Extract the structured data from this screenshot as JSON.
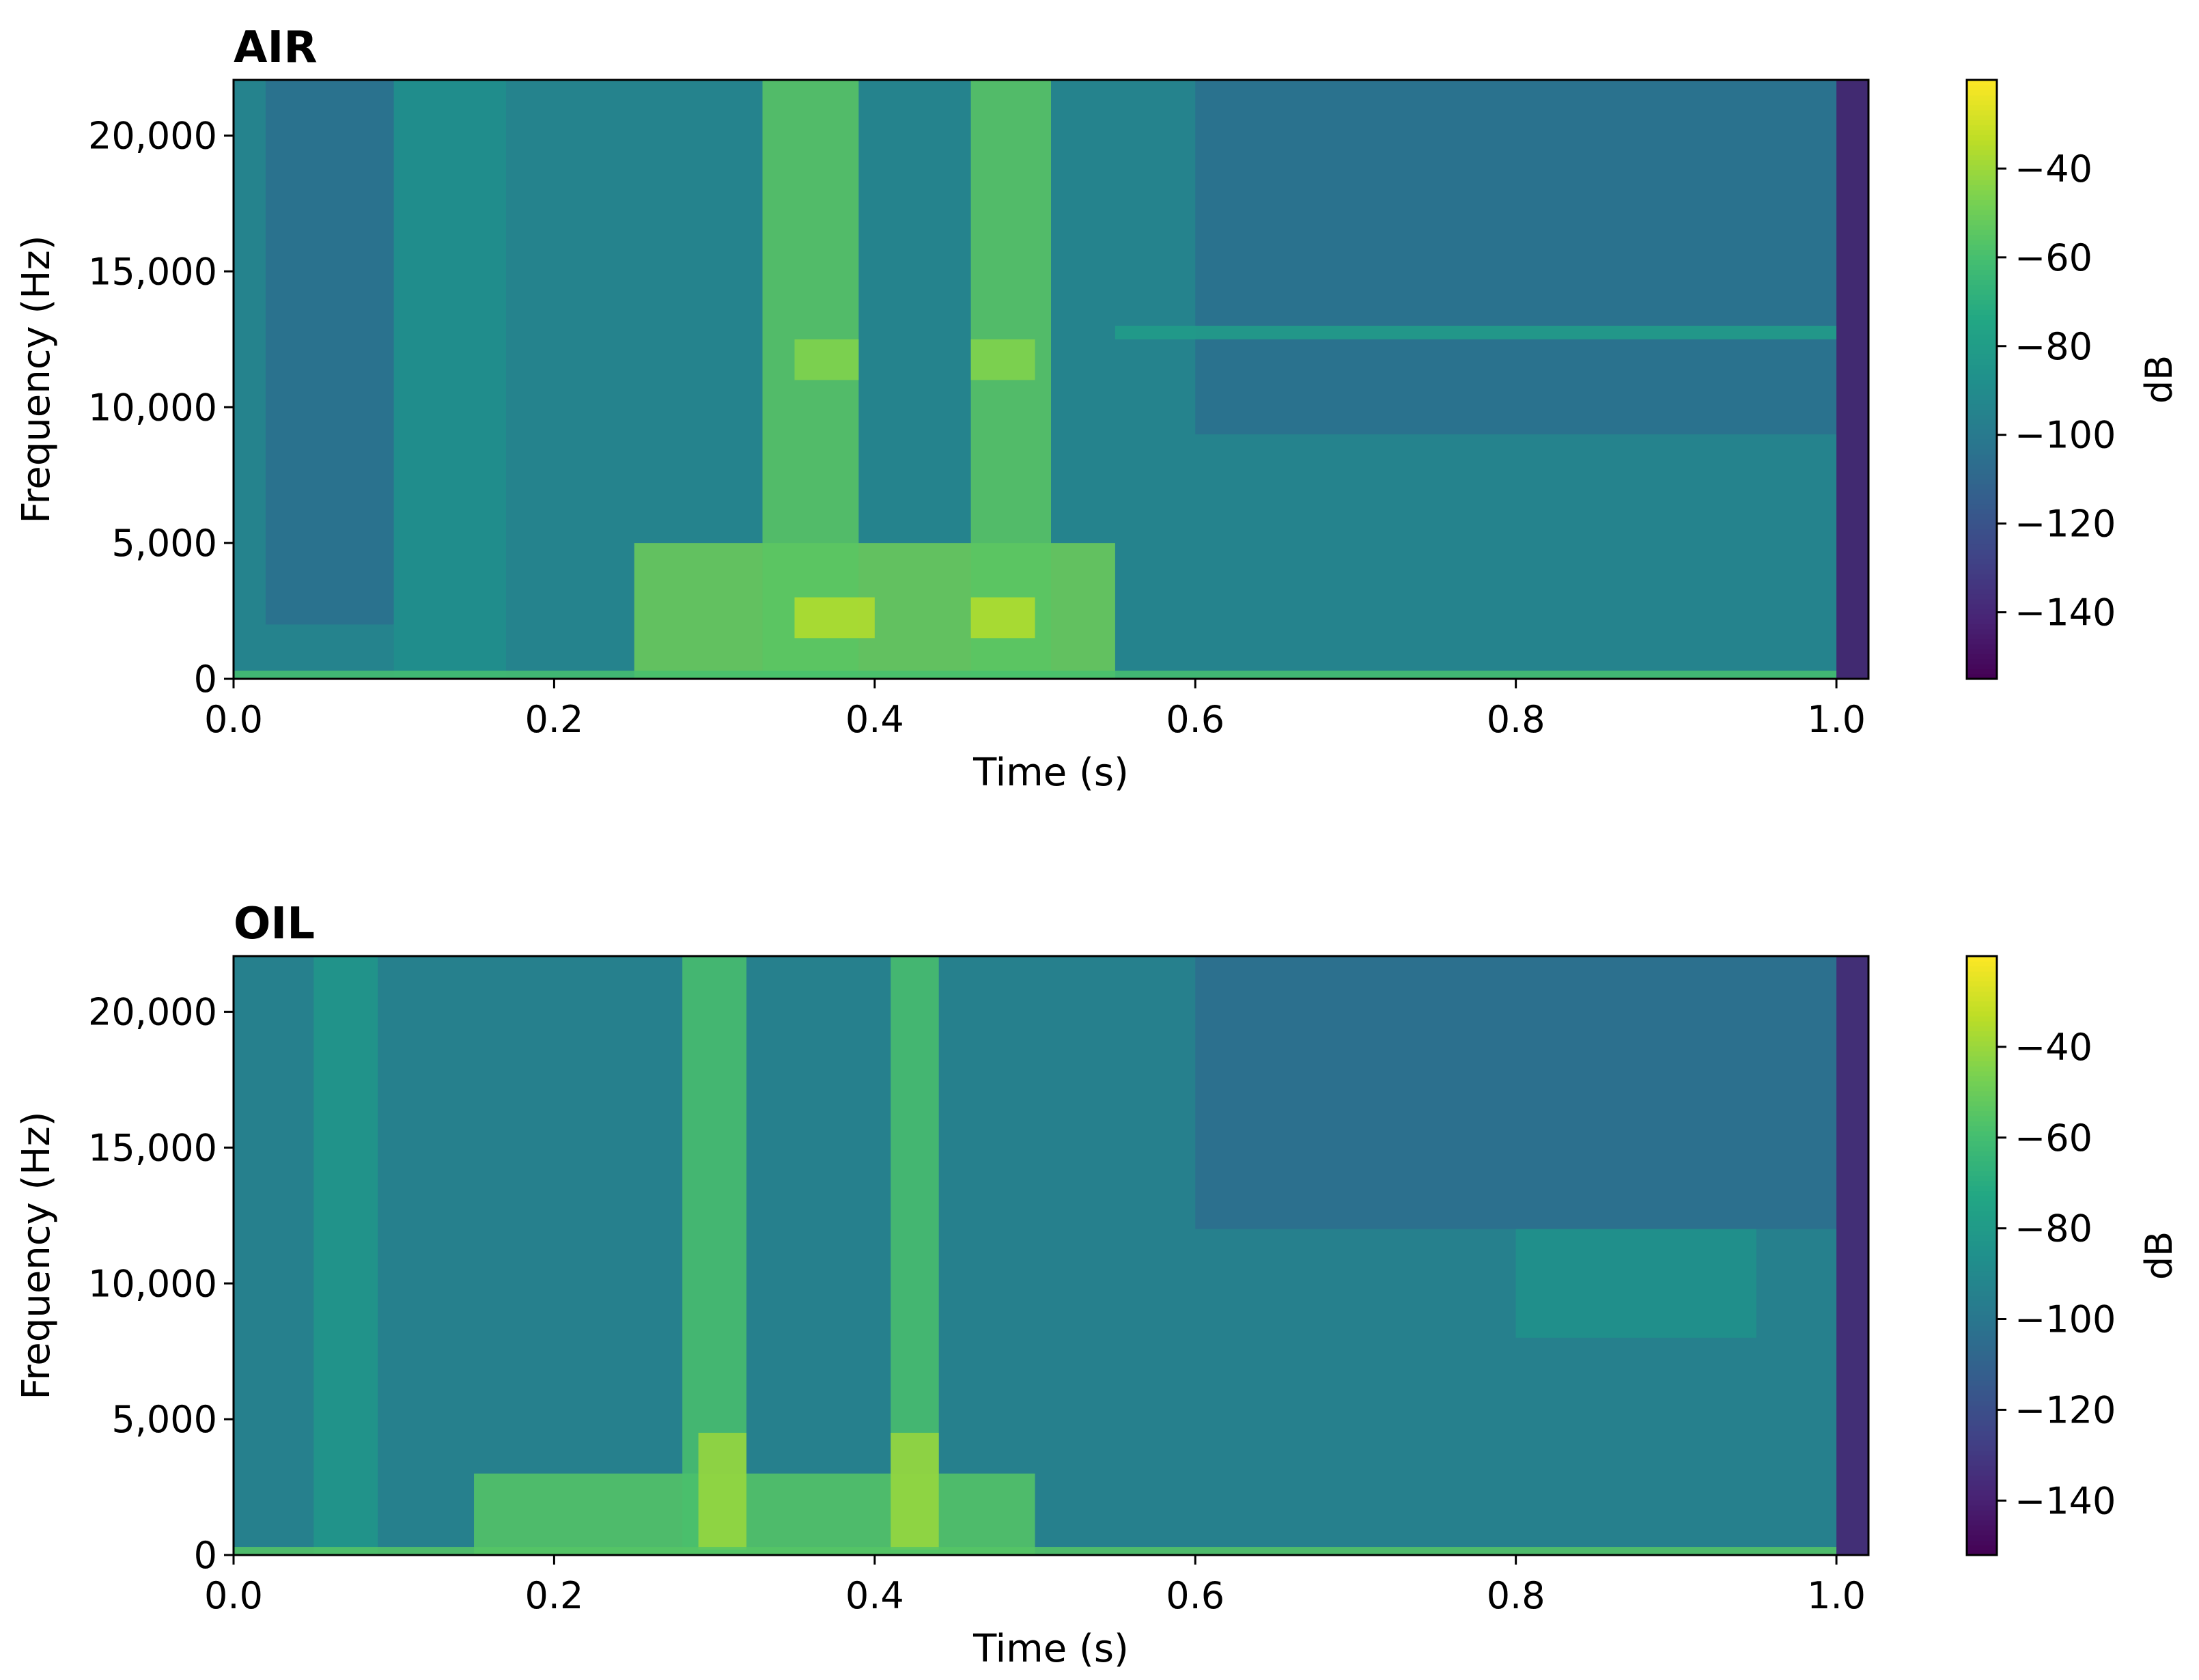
{
  "chart_data": [
    {
      "type": "heatmap",
      "title": "AIR",
      "xlabel": "Time (s)",
      "ylabel": "Frequency (Hz)",
      "xlim": [
        0.0,
        1.02
      ],
      "ylim": [
        0,
        22050
      ],
      "xticks": [
        0.0,
        0.2,
        0.4,
        0.6,
        0.8,
        1.0
      ],
      "xtick_labels": [
        "0.0",
        "0.2",
        "0.4",
        "0.6",
        "0.8",
        "1.0"
      ],
      "yticks": [
        0,
        5000,
        10000,
        15000,
        20000
      ],
      "ytick_labels": [
        "0",
        "5,000",
        "10,000",
        "15,000",
        "20,000"
      ],
      "colormap": "viridis",
      "colorbar": {
        "label": "dB",
        "range": [
          -155,
          -20
        ],
        "ticks": [
          -140,
          -120,
          -100,
          -80,
          -60,
          -40
        ],
        "tick_labels": [
          "−140",
          "−120",
          "−100",
          "−80",
          "−60",
          "−40"
        ]
      },
      "background_db": -95,
      "features": [
        {
          "t0": 0.02,
          "t1": 0.1,
          "f0": 2000,
          "f1": 22050,
          "db": -105
        },
        {
          "t0": 0.1,
          "t1": 0.17,
          "f0": 0,
          "f1": 22050,
          "db": -88
        },
        {
          "t0": 0.6,
          "t1": 1.0,
          "f0": 9000,
          "f1": 22050,
          "db": -105
        },
        {
          "t0": 0.55,
          "t1": 1.0,
          "f0": 12500,
          "f1": 13000,
          "db": -80
        },
        {
          "t0": 0.25,
          "t1": 0.55,
          "f0": 0,
          "f1": 5000,
          "db": -50
        },
        {
          "t0": 0.33,
          "t1": 0.39,
          "f0": 0,
          "f1": 22050,
          "db": -55
        },
        {
          "t0": 0.46,
          "t1": 0.51,
          "f0": 0,
          "f1": 22050,
          "db": -55
        },
        {
          "t0": 0.35,
          "t1": 0.4,
          "f0": 1500,
          "f1": 3000,
          "db": -35
        },
        {
          "t0": 0.46,
          "t1": 0.5,
          "f0": 1500,
          "f1": 3000,
          "db": -35
        },
        {
          "t0": 0.35,
          "t1": 0.39,
          "f0": 11000,
          "f1": 12500,
          "db": -45
        },
        {
          "t0": 0.46,
          "t1": 0.5,
          "f0": 11000,
          "f1": 12500,
          "db": -45
        },
        {
          "t0": 0.0,
          "t1": 1.0,
          "f0": 0,
          "f1": 300,
          "db": -60
        },
        {
          "t0": 1.0,
          "t1": 1.02,
          "f0": 0,
          "f1": 22050,
          "db": -145
        }
      ]
    },
    {
      "type": "heatmap",
      "title": "OIL",
      "xlabel": "Time (s)",
      "ylabel": "Frequency (Hz)",
      "xlim": [
        0.0,
        1.02
      ],
      "ylim": [
        0,
        22050
      ],
      "xticks": [
        0.0,
        0.2,
        0.4,
        0.6,
        0.8,
        1.0
      ],
      "xtick_labels": [
        "0.0",
        "0.2",
        "0.4",
        "0.6",
        "0.8",
        "1.0"
      ],
      "yticks": [
        0,
        5000,
        10000,
        15000,
        20000
      ],
      "ytick_labels": [
        "0",
        "5,000",
        "10,000",
        "15,000",
        "20,000"
      ],
      "colormap": "viridis",
      "colorbar": {
        "label": "dB",
        "range": [
          -152,
          -20
        ],
        "ticks": [
          -140,
          -120,
          -100,
          -80,
          -60,
          -40
        ],
        "tick_labels": [
          "−140",
          "−120",
          "−100",
          "−80",
          "−60",
          "−40"
        ]
      },
      "background_db": -95,
      "features": [
        {
          "t0": 0.05,
          "t1": 0.09,
          "f0": 0,
          "f1": 22050,
          "db": -82
        },
        {
          "t0": 0.6,
          "t1": 1.0,
          "f0": 12000,
          "f1": 22050,
          "db": -105
        },
        {
          "t0": 0.8,
          "t1": 0.95,
          "f0": 8000,
          "f1": 12000,
          "db": -85
        },
        {
          "t0": 0.15,
          "t1": 0.5,
          "f0": 0,
          "f1": 3000,
          "db": -55
        },
        {
          "t0": 0.28,
          "t1": 0.32,
          "f0": 0,
          "f1": 22050,
          "db": -58
        },
        {
          "t0": 0.41,
          "t1": 0.44,
          "f0": 0,
          "f1": 22050,
          "db": -58
        },
        {
          "t0": 0.29,
          "t1": 0.32,
          "f0": 200,
          "f1": 4500,
          "db": -40
        },
        {
          "t0": 0.41,
          "t1": 0.44,
          "f0": 200,
          "f1": 4500,
          "db": -40
        },
        {
          "t0": 0.0,
          "t1": 1.0,
          "f0": 0,
          "f1": 300,
          "db": -55
        },
        {
          "t0": 1.0,
          "t1": 1.02,
          "f0": 0,
          "f1": 22050,
          "db": -140
        }
      ]
    }
  ]
}
